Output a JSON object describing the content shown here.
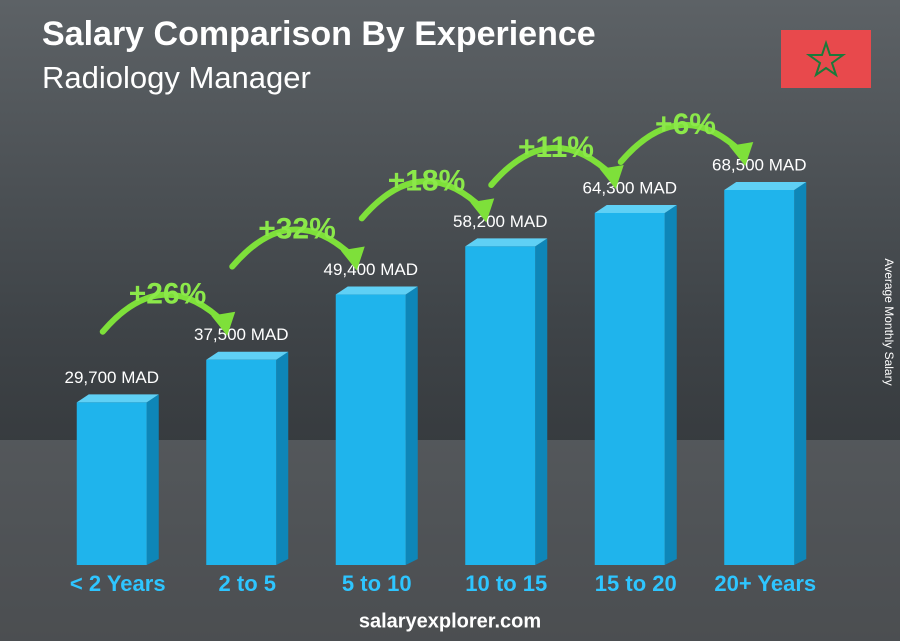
{
  "chart_data": {
    "type": "bar",
    "title": "Salary Comparison By Experience",
    "subtitle": "Radiology Manager",
    "y_label": "Average Monthly Salary",
    "categories": [
      "< 2 Years",
      "2 to 5",
      "5 to 10",
      "10 to 15",
      "15 to 20",
      "20+ Years"
    ],
    "values": [
      29700,
      37500,
      49400,
      58200,
      64300,
      68500
    ],
    "value_labels": [
      "29,700 MAD",
      "37,500 MAD",
      "49,400 MAD",
      "58,200 MAD",
      "64,300 MAD",
      "68,500 MAD"
    ],
    "changes": [
      "+26%",
      "+32%",
      "+18%",
      "+11%",
      "+6%"
    ],
    "color": "#1fb4ec",
    "footer": "salaryexplorer.com"
  }
}
